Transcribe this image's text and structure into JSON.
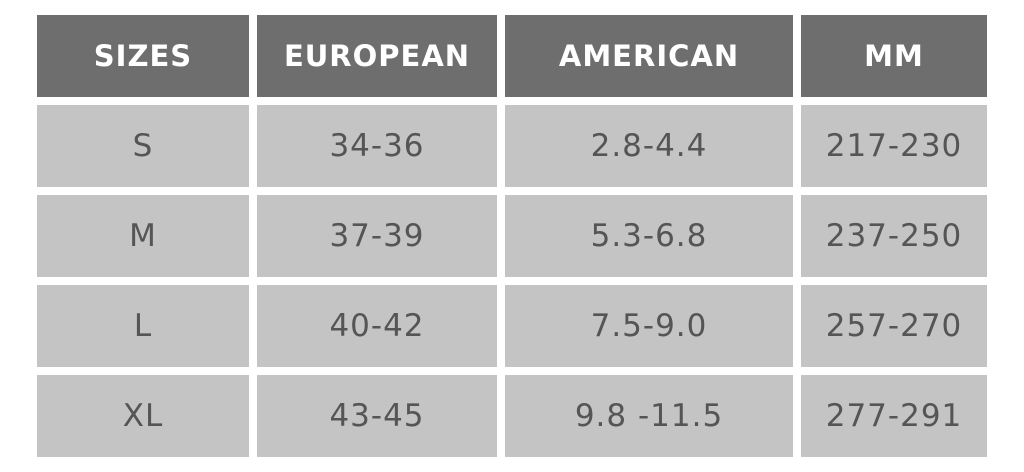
{
  "table": {
    "columns": [
      "SIZES",
      "EUROPEAN",
      "AMERICAN",
      "MM"
    ],
    "rows": [
      [
        "S",
        "34-36",
        "2.8-4.4",
        "217-230"
      ],
      [
        "M",
        "37-39",
        "5.3-6.8",
        "237-250"
      ],
      [
        "L",
        "40-42",
        "7.5-9.0",
        "257-270"
      ],
      [
        "XL",
        "43-45",
        "9.8 -11.5",
        "277-291"
      ]
    ]
  }
}
